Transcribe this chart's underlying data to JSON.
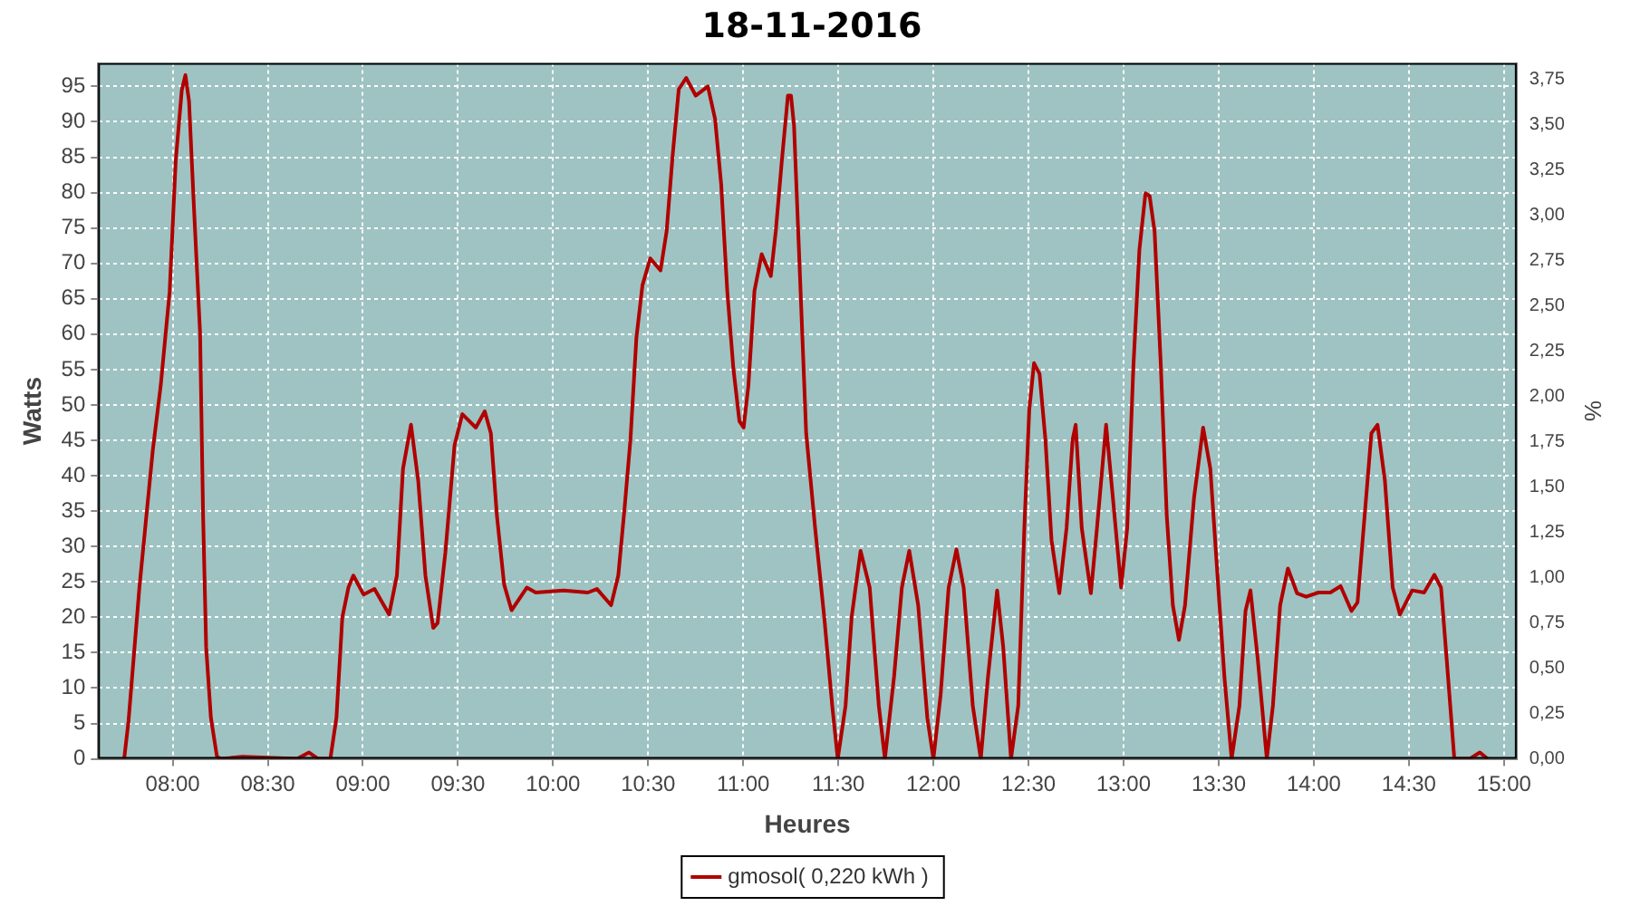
{
  "chart_data": {
    "type": "line",
    "title": "18-11-2016",
    "xlabel": "Heures",
    "ylabel": "Watts",
    "y2label": "%",
    "xlim": [
      7.608,
      15.067
    ],
    "ylim": [
      0,
      98.3
    ],
    "y2lim": [
      0,
      3.84
    ],
    "xticks": [
      {
        "value": 8,
        "label": "08:00"
      },
      {
        "value": 8.5,
        "label": "08:30"
      },
      {
        "value": 9,
        "label": "09:00"
      },
      {
        "value": 9.5,
        "label": "09:30"
      },
      {
        "value": 10,
        "label": "10:00"
      },
      {
        "value": 10.5,
        "label": "10:30"
      },
      {
        "value": 11,
        "label": "11:00"
      },
      {
        "value": 11.5,
        "label": "11:30"
      },
      {
        "value": 12,
        "label": "12:00"
      },
      {
        "value": 12.5,
        "label": "12:30"
      },
      {
        "value": 13,
        "label": "13:00"
      },
      {
        "value": 13.5,
        "label": "13:30"
      },
      {
        "value": 14,
        "label": "14:00"
      },
      {
        "value": 14.5,
        "label": "14:30"
      },
      {
        "value": 15,
        "label": "15:00"
      }
    ],
    "yticks": [
      0,
      5,
      10,
      15,
      20,
      25,
      30,
      35,
      40,
      45,
      50,
      55,
      60,
      65,
      70,
      75,
      80,
      85,
      90,
      95
    ],
    "y2ticks": [
      {
        "value": 0,
        "label": "0,00"
      },
      {
        "value": 0.25,
        "label": "0,25"
      },
      {
        "value": 0.5,
        "label": "0,50"
      },
      {
        "value": 0.75,
        "label": "0,75"
      },
      {
        "value": 1,
        "label": "1,00"
      },
      {
        "value": 1.25,
        "label": "1,25"
      },
      {
        "value": 1.5,
        "label": "1,50"
      },
      {
        "value": 1.75,
        "label": "1,75"
      },
      {
        "value": 2,
        "label": "2,00"
      },
      {
        "value": 2.25,
        "label": "2,25"
      },
      {
        "value": 2.5,
        "label": "2,50"
      },
      {
        "value": 2.75,
        "label": "2,75"
      },
      {
        "value": 3,
        "label": "3,00"
      },
      {
        "value": 3.25,
        "label": "3,25"
      },
      {
        "value": 3.5,
        "label": "3,50"
      },
      {
        "value": 3.75,
        "label": "3,75"
      }
    ],
    "grid": true,
    "legend": "bottom",
    "marker": "none",
    "line_style": "solid",
    "series": [
      {
        "name": "gmosol( 0,220 kWh )",
        "color": "#b00000",
        "x": [
          7.745,
          7.768,
          7.825,
          7.895,
          7.937,
          7.984,
          8.016,
          8.048,
          8.067,
          8.086,
          8.112,
          8.144,
          8.16,
          8.176,
          8.201,
          8.233,
          8.255,
          8.367,
          8.654,
          8.717,
          8.765,
          8.829,
          8.861,
          8.892,
          8.924,
          8.95,
          9.004,
          9.061,
          9.138,
          9.179,
          9.211,
          9.253,
          9.291,
          9.329,
          9.37,
          9.393,
          9.434,
          9.482,
          9.523,
          9.594,
          9.641,
          9.673,
          9.705,
          9.743,
          9.782,
          9.862,
          9.909,
          10.056,
          10.183,
          10.231,
          10.305,
          10.343,
          10.375,
          10.407,
          10.438,
          10.47,
          10.511,
          10.565,
          10.597,
          10.629,
          10.661,
          10.7,
          10.75,
          10.814,
          10.852,
          10.884,
          10.916,
          10.948,
          10.98,
          11.002,
          11.027,
          11.059,
          11.097,
          11.145,
          11.171,
          11.203,
          11.235,
          11.251,
          11.267,
          11.299,
          11.331,
          11.378,
          11.426,
          11.468,
          11.497,
          11.538,
          11.57,
          11.617,
          11.665,
          11.713,
          11.745,
          11.793,
          11.834,
          11.873,
          11.92,
          11.968,
          12.0,
          12.038,
          12.08,
          12.121,
          12.159,
          12.207,
          12.249,
          12.287,
          12.335,
          12.367,
          12.408,
          12.446,
          12.478,
          12.504,
          12.529,
          12.558,
          12.589,
          12.621,
          12.662,
          12.7,
          12.732,
          12.748,
          12.78,
          12.828,
          12.86,
          12.908,
          12.947,
          12.987,
          13.019,
          13.051,
          13.083,
          13.115,
          13.137,
          13.163,
          13.195,
          13.227,
          13.259,
          13.291,
          13.323,
          13.37,
          13.418,
          13.456,
          13.498,
          13.53,
          13.568,
          13.609,
          13.641,
          13.667,
          13.705,
          13.753,
          13.785,
          13.823,
          13.864,
          13.912,
          13.96,
          14.024,
          14.087,
          14.141,
          14.198,
          14.23,
          14.262,
          14.303,
          14.335,
          14.374,
          14.415,
          14.453,
          14.517,
          14.58,
          14.634,
          14.669,
          14.701,
          14.739,
          14.819,
          14.873,
          14.914
        ],
        "values": [
          0,
          5.4,
          24.2,
          43.5,
          52.7,
          66,
          84.5,
          94.5,
          96.6,
          92.9,
          77.8,
          60.2,
          34.3,
          15.8,
          5.8,
          0.3,
          0,
          0.3,
          0,
          0.9,
          0,
          0,
          5.8,
          20,
          24.2,
          25.9,
          23.2,
          24,
          20.4,
          25.9,
          41,
          47.2,
          39.3,
          25.9,
          18.5,
          19.2,
          29.2,
          44.3,
          48.7,
          46.8,
          49.1,
          46,
          34.3,
          24.6,
          21,
          24.2,
          23.5,
          23.8,
          23.5,
          24,
          21.7,
          25.9,
          35.1,
          45.1,
          59.4,
          66.9,
          70.7,
          69,
          74.5,
          85.3,
          94.6,
          96.2,
          93.7,
          95,
          90.4,
          81.2,
          66.1,
          55.2,
          47.7,
          46.8,
          52.7,
          66.1,
          71.3,
          68.2,
          74.5,
          84.5,
          93.7,
          93.7,
          89.5,
          67.8,
          46,
          32.6,
          20,
          7.5,
          0,
          7.5,
          20,
          29.4,
          24.2,
          7.5,
          0,
          11.6,
          24.2,
          29.4,
          21.7,
          5.8,
          0,
          9.1,
          24.2,
          29.6,
          24.2,
          7.5,
          0,
          11.6,
          23.8,
          15.8,
          0,
          7.5,
          32.6,
          49.3,
          55.9,
          54.4,
          45.1,
          30.9,
          23.4,
          32.6,
          45.1,
          47.2,
          32.6,
          23.4,
          32.6,
          47.2,
          35.9,
          24.2,
          32.6,
          55.2,
          71.9,
          79.9,
          79.5,
          74.5,
          56,
          34.3,
          21.7,
          16.8,
          21.7,
          36.8,
          46.8,
          41,
          24.2,
          11.6,
          0,
          7.5,
          20.9,
          23.8,
          14.2,
          0,
          7.5,
          21.7,
          26.9,
          23.4,
          22.9,
          23.5,
          23.5,
          24.4,
          20.9,
          22.1,
          32.6,
          46,
          47.2,
          39.3,
          24.2,
          20.4,
          23.8,
          23.5,
          26,
          24.2,
          13.3,
          0,
          0,
          0.9,
          0
        ]
      }
    ]
  }
}
